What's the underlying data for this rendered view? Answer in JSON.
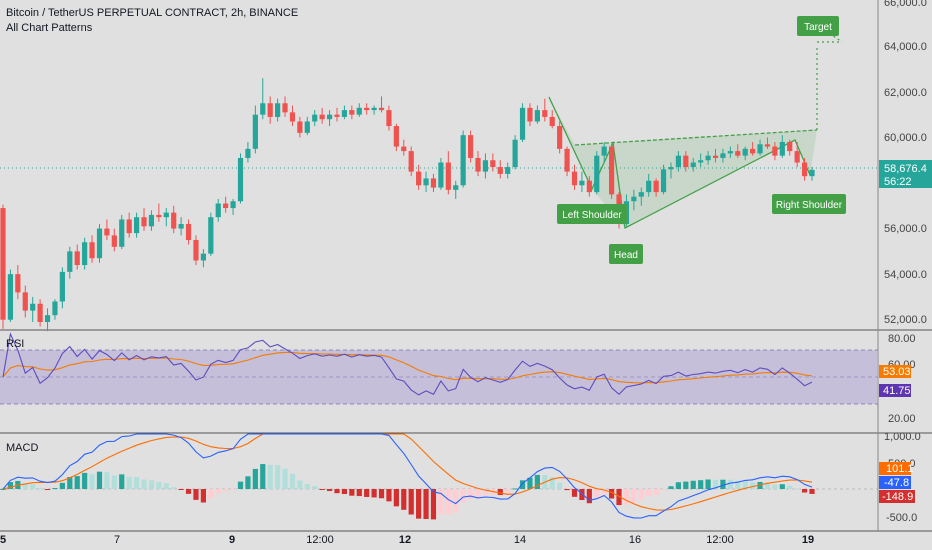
{
  "header": {
    "title": "Bitcoin / TetherUS PERPETUAL CONTRACT, 2h, BINANCE",
    "indicator": "All Chart Patterns"
  },
  "price_axis": {
    "ticks": [
      "66,000.0",
      "64,000.0",
      "62,000.0",
      "60,000.0",
      "56,000.0",
      "54,000.0",
      "52,000.0"
    ],
    "last_price": "58,676.4",
    "countdown": "56:22"
  },
  "rsi": {
    "label": "RSI",
    "ticks": [
      "80.00",
      "60.00",
      "20.00"
    ],
    "value_orange": "53.03",
    "value_purple": "41.75"
  },
  "macd": {
    "label": "MACD",
    "ticks": [
      "1,000.0",
      "500.0",
      "-500.0"
    ],
    "value_orange": "101.1",
    "value_blue": "-47.8",
    "value_hist": "-148.9"
  },
  "time_axis": {
    "ticks": [
      {
        "label": "5",
        "bold": true
      },
      {
        "label": "7",
        "bold": false
      },
      {
        "label": "9",
        "bold": true
      },
      {
        "label": "12:00",
        "bold": false
      },
      {
        "label": "12",
        "bold": true
      },
      {
        "label": "14",
        "bold": false
      },
      {
        "label": "16",
        "bold": false
      },
      {
        "label": "12:00",
        "bold": false
      },
      {
        "label": "19",
        "bold": true
      }
    ]
  },
  "pattern_labels": {
    "left_shoulder": "Left Shoulder",
    "head": "Head",
    "right_shoulder": "Right Shoulder",
    "target": "Target"
  },
  "colors": {
    "up": "#26a69a",
    "down": "#ef5350",
    "pattern": "#43a047",
    "rsi_line": "#5e4dbf",
    "rsi_ma": "#f57c00",
    "macd_line": "#2962ff",
    "signal_line": "#ff6d00"
  },
  "chart_data": {
    "type": "candlestick",
    "ohlc": [
      [
        57000,
        57150,
        51700,
        52100
      ],
      [
        52100,
        54300,
        52000,
        54100
      ],
      [
        54100,
        54500,
        53000,
        53300
      ],
      [
        53300,
        53600,
        52200,
        52500
      ],
      [
        52500,
        53100,
        52000,
        52800
      ],
      [
        52800,
        53000,
        51800,
        52000
      ],
      [
        52000,
        52600,
        51600,
        52300
      ],
      [
        52300,
        53000,
        52100,
        52900
      ],
      [
        52900,
        54400,
        52600,
        54200
      ],
      [
        54200,
        55300,
        53900,
        55100
      ],
      [
        55100,
        55400,
        54300,
        54500
      ],
      [
        54500,
        55700,
        54300,
        55500
      ],
      [
        55500,
        55800,
        54600,
        54800
      ],
      [
        54800,
        56300,
        54600,
        56100
      ],
      [
        56100,
        56500,
        55600,
        55800
      ],
      [
        55800,
        56100,
        55100,
        55300
      ],
      [
        55300,
        56700,
        55200,
        56500
      ],
      [
        56500,
        56800,
        55700,
        55900
      ],
      [
        55900,
        56800,
        55700,
        56600
      ],
      [
        56600,
        57000,
        56000,
        56200
      ],
      [
        56200,
        56900,
        56000,
        56700
      ],
      [
        56700,
        57200,
        56400,
        56600
      ],
      [
        56600,
        57000,
        56200,
        56800
      ],
      [
        56800,
        57100,
        55900,
        56100
      ],
      [
        56100,
        56600,
        55800,
        56300
      ],
      [
        56300,
        56500,
        55400,
        55600
      ],
      [
        55600,
        55800,
        54500,
        54700
      ],
      [
        54700,
        55200,
        54400,
        55000
      ],
      [
        55000,
        56800,
        54900,
        56600
      ],
      [
        56600,
        57400,
        56400,
        57200
      ],
      [
        57200,
        57500,
        56800,
        57000
      ],
      [
        57000,
        57400,
        56700,
        57300
      ],
      [
        57300,
        59400,
        57200,
        59200
      ],
      [
        59200,
        59900,
        59000,
        59600
      ],
      [
        59600,
        61500,
        59400,
        61100
      ],
      [
        61100,
        62700,
        60900,
        61600
      ],
      [
        61600,
        61900,
        60700,
        61000
      ],
      [
        61000,
        61800,
        60800,
        61600
      ],
      [
        61600,
        61900,
        61000,
        61200
      ],
      [
        61200,
        61500,
        60600,
        60800
      ],
      [
        60800,
        61000,
        60100,
        60300
      ],
      [
        60300,
        61000,
        60200,
        60800
      ],
      [
        60800,
        61300,
        60600,
        61100
      ],
      [
        61100,
        61400,
        60700,
        60900
      ],
      [
        60900,
        61300,
        60600,
        61100
      ],
      [
        61100,
        61400,
        60800,
        61000
      ],
      [
        61000,
        61500,
        60900,
        61300
      ],
      [
        61300,
        61500,
        60900,
        61100
      ],
      [
        61100,
        61600,
        61000,
        61400
      ],
      [
        61400,
        61600,
        61100,
        61300
      ],
      [
        61300,
        61500,
        61100,
        61400
      ],
      [
        61400,
        61900,
        61200,
        61300
      ],
      [
        61300,
        61500,
        60400,
        60600
      ],
      [
        60600,
        60700,
        59500,
        59700
      ],
      [
        59700,
        60000,
        59300,
        59500
      ],
      [
        59500,
        59700,
        58400,
        58600
      ],
      [
        58600,
        58900,
        57800,
        58000
      ],
      [
        58000,
        58600,
        57700,
        58300
      ],
      [
        58300,
        58500,
        57700,
        57900
      ],
      [
        57900,
        59200,
        57800,
        59000
      ],
      [
        59000,
        59500,
        57600,
        57800
      ],
      [
        57800,
        58200,
        57400,
        58000
      ],
      [
        58000,
        60400,
        57900,
        60200
      ],
      [
        60200,
        60400,
        59000,
        59200
      ],
      [
        59200,
        59500,
        58400,
        58600
      ],
      [
        58600,
        59400,
        58300,
        59100
      ],
      [
        59100,
        59400,
        58600,
        58800
      ],
      [
        58800,
        59100,
        58300,
        58500
      ],
      [
        58500,
        59000,
        58300,
        58800
      ],
      [
        58800,
        60200,
        58700,
        60000
      ],
      [
        60000,
        61600,
        59900,
        61400
      ],
      [
        61400,
        61600,
        60600,
        60800
      ],
      [
        60800,
        61500,
        60700,
        61300
      ],
      [
        61300,
        61800,
        60800,
        61000
      ],
      [
        61000,
        61300,
        60500,
        60600
      ],
      [
        60600,
        60800,
        59400,
        59600
      ],
      [
        59600,
        59700,
        58400,
        58600
      ],
      [
        58600,
        58900,
        57800,
        58000
      ],
      [
        58000,
        58600,
        57700,
        58200
      ],
      [
        58200,
        58400,
        57500,
        57700
      ],
      [
        57700,
        59500,
        57600,
        59300
      ],
      [
        59300,
        59900,
        59000,
        59700
      ],
      [
        59700,
        59800,
        57400,
        57600
      ],
      [
        57600,
        57700,
        56100,
        56300
      ],
      [
        56300,
        57600,
        56200,
        57300
      ],
      [
        57300,
        57800,
        56900,
        57500
      ],
      [
        57500,
        57900,
        57100,
        57700
      ],
      [
        57700,
        58500,
        57500,
        58200
      ],
      [
        58200,
        58300,
        57500,
        57700
      ],
      [
        57700,
        58900,
        57600,
        58700
      ],
      [
        58700,
        59000,
        58300,
        58800
      ],
      [
        58800,
        59500,
        58600,
        59300
      ],
      [
        59300,
        59500,
        58600,
        58800
      ],
      [
        58800,
        59200,
        58600,
        59000
      ],
      [
        59000,
        59400,
        58800,
        59100
      ],
      [
        59100,
        59500,
        58900,
        59300
      ],
      [
        59300,
        59600,
        59000,
        59200
      ],
      [
        59200,
        59600,
        59000,
        59400
      ],
      [
        59400,
        59700,
        59200,
        59500
      ],
      [
        59500,
        59800,
        59200,
        59300
      ],
      [
        59300,
        59700,
        59100,
        59600
      ],
      [
        59600,
        59900,
        59300,
        59400
      ],
      [
        59400,
        60000,
        59300,
        59800
      ],
      [
        59800,
        60100,
        59600,
        59700
      ],
      [
        59700,
        59900,
        59100,
        59300
      ],
      [
        59300,
        60200,
        59200,
        59900
      ],
      [
        59900,
        60000,
        59300,
        59500
      ],
      [
        59500,
        59900,
        58800,
        59000
      ],
      [
        59000,
        59200,
        58200,
        58400
      ],
      [
        58400,
        58800,
        58200,
        58676
      ]
    ]
  }
}
